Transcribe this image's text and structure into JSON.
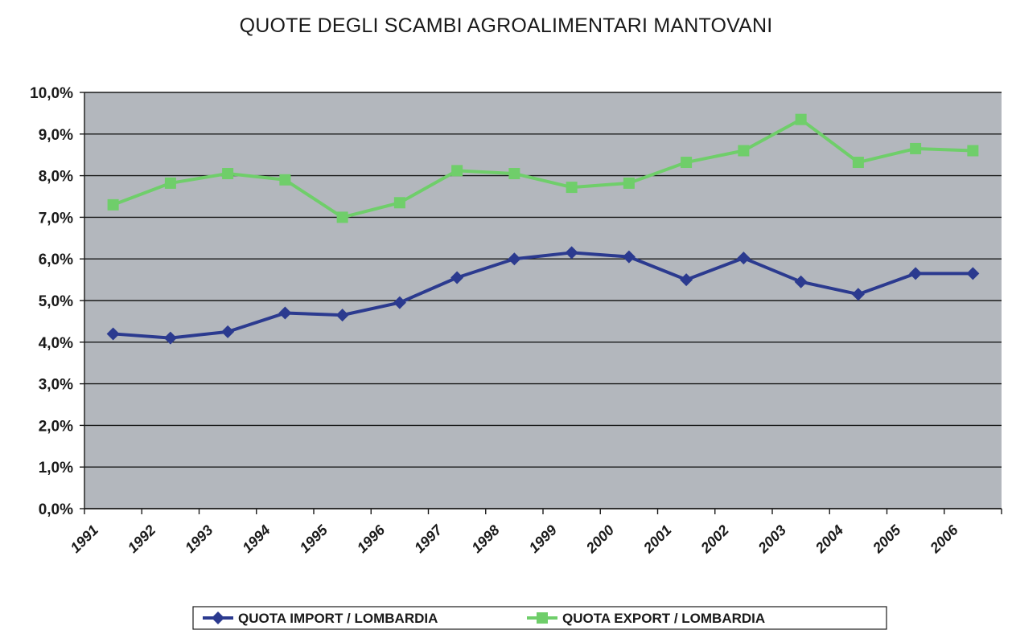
{
  "chart_data": {
    "type": "line",
    "title": "QUOTE DEGLI SCAMBI AGROALIMENTARI MANTOVANI",
    "xlabel": "",
    "ylabel": "",
    "categories": [
      "1991",
      "1992",
      "1993",
      "1994",
      "1995",
      "1996",
      "1997",
      "1998",
      "1999",
      "2000",
      "2001",
      "2002",
      "2003",
      "2004",
      "2005",
      "2006"
    ],
    "y_tick_labels": [
      "0,0%",
      "1,0%",
      "2,0%",
      "3,0%",
      "4,0%",
      "5,0%",
      "6,0%",
      "7,0%",
      "8,0%",
      "9,0%",
      "10,0%"
    ],
    "ylim": [
      0,
      10
    ],
    "grid": true,
    "legend_position": "bottom",
    "series": [
      {
        "name": "QUOTA IMPORT /  LOMBARDIA",
        "color": "#2b3a8f",
        "marker": "diamond",
        "values": [
          4.2,
          4.1,
          4.25,
          4.7,
          4.65,
          4.95,
          5.55,
          6.0,
          6.15,
          6.05,
          5.5,
          6.02,
          5.45,
          5.15,
          5.65,
          5.65
        ]
      },
      {
        "name": "QUOTA EXPORT /  LOMBARDIA",
        "color": "#6fce6a",
        "marker": "square",
        "values": [
          7.3,
          7.82,
          8.05,
          7.9,
          7.0,
          7.35,
          8.12,
          8.05,
          7.72,
          7.82,
          8.32,
          8.6,
          9.35,
          8.32,
          8.65,
          8.6
        ]
      }
    ],
    "plot_background": "#b3b7bd",
    "grid_color": "#1a1a1a"
  }
}
